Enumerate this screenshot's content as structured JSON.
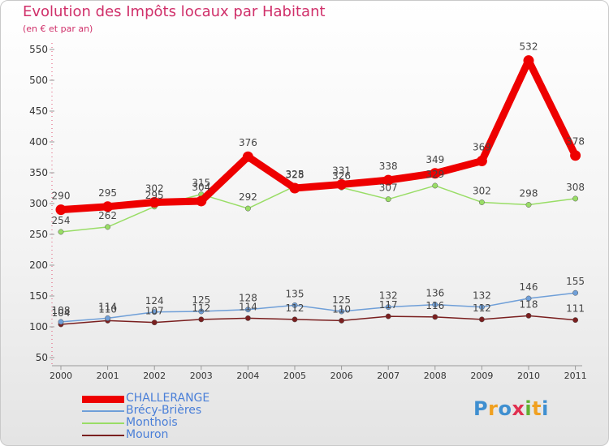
{
  "header": {
    "title": "Evolution des Impôts locaux par Habitant",
    "subtitle": "(en € et par an)"
  },
  "logo": {
    "text": "Proxiti"
  },
  "chart_data": {
    "type": "line",
    "title": "Evolution des Impôts locaux par Habitant",
    "subtitle": "(en € et par an)",
    "xlabel": "",
    "ylabel": "",
    "ylim": [
      50,
      550
    ],
    "y_ticks": [
      50,
      100,
      150,
      200,
      250,
      300,
      350,
      400,
      450,
      500,
      550
    ],
    "categories": [
      "2000",
      "2001",
      "2002",
      "2003",
      "2004",
      "2005",
      "2006",
      "2007",
      "2008",
      "2009",
      "2010",
      "2011"
    ],
    "series": [
      {
        "name": "CHALLERANGE",
        "color": "#ee0000",
        "values": [
          290,
          295,
          302,
          304,
          376,
          325,
          331,
          338,
          349,
          369,
          532,
          378
        ]
      },
      {
        "name": "Brécy-Brières",
        "color": "#6f9fd8",
        "values": [
          108,
          114,
          124,
          125,
          128,
          135,
          125,
          132,
          136,
          132,
          146,
          155
        ]
      },
      {
        "name": "Monthois",
        "color": "#99dd66",
        "values": [
          254,
          262,
          295,
          315,
          292,
          328,
          326,
          307,
          329,
          302,
          298,
          308
        ]
      },
      {
        "name": "Mouron",
        "color": "#7a1f1f",
        "values": [
          104,
          110,
          107,
          112,
          114,
          112,
          110,
          117,
          116,
          112,
          118,
          111
        ]
      }
    ],
    "legend_position": "bottom-left",
    "grid": false
  }
}
